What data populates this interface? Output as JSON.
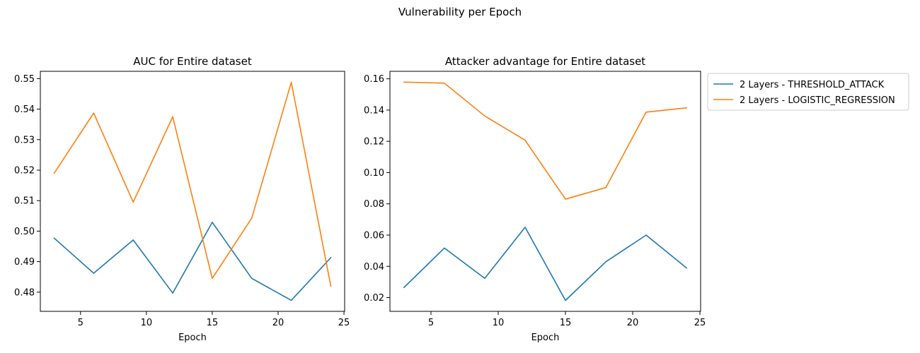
{
  "figure": {
    "title": "Vulnerability per Epoch"
  },
  "legend": {
    "placement": "outside-top-right",
    "entries": [
      {
        "label": "2 Layers - THRESHOLD_ATTACK",
        "color": "#1f77b4"
      },
      {
        "label": "2 Layers - LOGISTIC_REGRESSION",
        "color": "#ff7f0e"
      }
    ]
  },
  "chart_data": [
    {
      "type": "line",
      "title": "AUC for Entire dataset",
      "xlabel": "Epoch",
      "ylabel": "",
      "xlim": [
        1.95,
        25.05
      ],
      "ylim": [
        0.4737,
        0.5524
      ],
      "xticks": [
        5,
        10,
        15,
        20,
        25
      ],
      "yticks": [
        0.48,
        0.49,
        0.5,
        0.51,
        0.52,
        0.53,
        0.54,
        0.55
      ],
      "ytick_labels": [
        "0.48",
        "0.49",
        "0.50",
        "0.51",
        "0.52",
        "0.53",
        "0.54",
        "0.55"
      ],
      "grid": false,
      "x": [
        3,
        6,
        9,
        12,
        15,
        18,
        21,
        24
      ],
      "series": [
        {
          "name": "2 Layers - THRESHOLD_ATTACK",
          "color": "#1f77b4",
          "values": [
            0.4977,
            0.4862,
            0.4971,
            0.4797,
            0.5029,
            0.4845,
            0.4773,
            0.4913
          ]
        },
        {
          "name": "2 Layers - LOGISTIC_REGRESSION",
          "color": "#ff7f0e",
          "values": [
            0.519,
            0.5387,
            0.5095,
            0.5375,
            0.4845,
            0.5043,
            0.5488,
            0.482
          ]
        }
      ]
    },
    {
      "type": "line",
      "title": "Attacker advantage for Entire dataset",
      "xlabel": "Epoch",
      "ylabel": "",
      "xlim": [
        1.95,
        25.05
      ],
      "ylim": [
        0.0112,
        0.1648
      ],
      "xticks": [
        5,
        10,
        15,
        20,
        25
      ],
      "yticks": [
        0.02,
        0.04,
        0.06,
        0.08,
        0.1,
        0.12,
        0.14,
        0.16
      ],
      "ytick_labels": [
        "0.02",
        "0.04",
        "0.06",
        "0.08",
        "0.10",
        "0.12",
        "0.14",
        "0.16"
      ],
      "grid": false,
      "x": [
        3,
        6,
        9,
        12,
        15,
        18,
        21,
        24
      ],
      "series": [
        {
          "name": "2 Layers - THRESHOLD_ATTACK",
          "color": "#1f77b4",
          "values": [
            0.0265,
            0.0517,
            0.0323,
            0.065,
            0.0182,
            0.0429,
            0.06,
            0.039
          ]
        },
        {
          "name": "2 Layers - LOGISTIC_REGRESSION",
          "color": "#ff7f0e",
          "values": [
            0.1579,
            0.1572,
            0.1362,
            0.1207,
            0.083,
            0.0904,
            0.1387,
            0.1414
          ]
        }
      ]
    }
  ]
}
